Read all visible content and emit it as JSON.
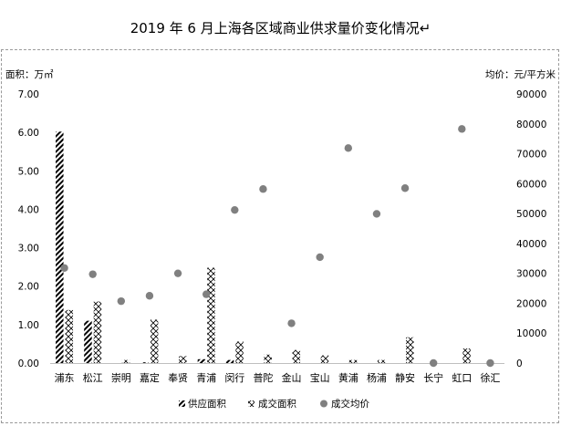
{
  "title": "2019 年 6 月上海各区域商业供求量价变化情况↵",
  "left_unit": "面积：万㎡",
  "right_unit": "均价：元/平方米",
  "chart_data": {
    "type": "bar",
    "title": "2019 年 6 月上海各区域商业供求量价变化情况",
    "categories": [
      "浦东",
      "松江",
      "崇明",
      "嘉定",
      "奉贤",
      "青浦",
      "闵行",
      "普陀",
      "金山",
      "宝山",
      "黄浦",
      "杨浦",
      "静安",
      "长宁",
      "虹口",
      "徐汇"
    ],
    "y_left": {
      "label": "面积：万㎡",
      "ylim": [
        0,
        7
      ],
      "ticks": [
        "0.00",
        "1.00",
        "2.00",
        "3.00",
        "4.00",
        "5.00",
        "6.00",
        "7.00"
      ]
    },
    "y_right": {
      "label": "均价：元/平方米",
      "ylim": [
        0,
        90000
      ],
      "ticks": [
        "0",
        "10000",
        "20000",
        "30000",
        "40000",
        "50000",
        "60000",
        "70000",
        "80000",
        "90000"
      ]
    },
    "series": [
      {
        "name": "供应面积",
        "type": "bar",
        "axis": "left",
        "pattern": "diagonal",
        "values": [
          6.02,
          1.1,
          0,
          0.02,
          0,
          0.1,
          0.08,
          0,
          0,
          0,
          0,
          0,
          0,
          0,
          0,
          0
        ]
      },
      {
        "name": "成交面积",
        "type": "bar",
        "axis": "left",
        "pattern": "cross",
        "values": [
          1.38,
          1.6,
          0.08,
          1.13,
          0.18,
          2.48,
          0.56,
          0.22,
          0.34,
          0.2,
          0.08,
          0.08,
          0.67,
          0,
          0.38,
          0
        ]
      },
      {
        "name": "成交均价",
        "type": "scatter",
        "axis": "right",
        "color": "#808080",
        "values": [
          31800,
          29700,
          20700,
          22500,
          30000,
          23000,
          51200,
          58200,
          13300,
          35400,
          71900,
          49900,
          58500,
          0,
          78300,
          0
        ]
      }
    ],
    "legend_position": "bottom"
  }
}
